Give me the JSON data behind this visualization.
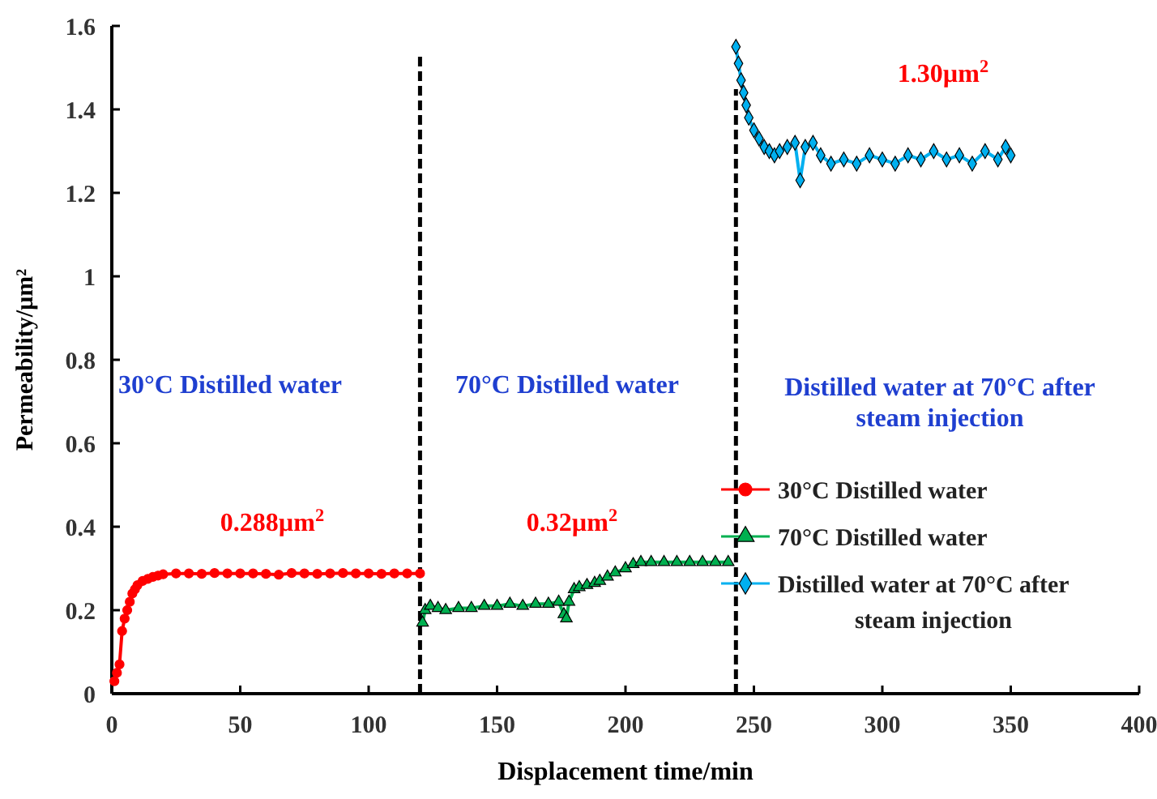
{
  "chart_data": {
    "type": "line",
    "xlabel": "Displacement time/min",
    "ylabel": "Permeability/µm²",
    "xlim": [
      0,
      400
    ],
    "xticks": [
      0,
      50,
      100,
      150,
      200,
      250,
      300,
      350,
      400
    ],
    "ylim": [
      0,
      1.6
    ],
    "yticks": [
      0,
      0.2,
      0.4,
      0.6,
      0.8,
      1,
      1.2,
      1.4,
      1.6
    ],
    "grid": false,
    "legend": "bottom right",
    "line_style": "solid",
    "series": [
      {
        "name": "30°C Distilled water",
        "color": "#ff0000",
        "marker": "circle",
        "x": [
          1,
          2,
          3,
          4,
          5,
          6,
          7,
          8,
          9,
          10,
          12,
          14,
          16,
          18,
          20,
          25,
          30,
          35,
          40,
          45,
          50,
          55,
          60,
          65,
          70,
          75,
          80,
          85,
          90,
          95,
          100,
          105,
          110,
          115,
          120
        ],
        "values": [
          0.03,
          0.05,
          0.07,
          0.15,
          0.18,
          0.2,
          0.22,
          0.24,
          0.25,
          0.26,
          0.27,
          0.275,
          0.28,
          0.283,
          0.286,
          0.288,
          0.288,
          0.287,
          0.289,
          0.288,
          0.288,
          0.288,
          0.287,
          0.285,
          0.289,
          0.288,
          0.287,
          0.288,
          0.289,
          0.288,
          0.288,
          0.287,
          0.288,
          0.288,
          0.288
        ]
      },
      {
        "name": "70°C Distilled water",
        "color": "#00b050",
        "marker": "triangle",
        "x": [
          121,
          122,
          124,
          127,
          130,
          135,
          140,
          145,
          150,
          155,
          160,
          165,
          170,
          174,
          176,
          177,
          178,
          180,
          182,
          185,
          188,
          190,
          193,
          196,
          200,
          203,
          206,
          210,
          215,
          220,
          225,
          230,
          235,
          240
        ],
        "values": [
          0.17,
          0.2,
          0.21,
          0.205,
          0.2,
          0.205,
          0.205,
          0.21,
          0.21,
          0.215,
          0.21,
          0.215,
          0.215,
          0.22,
          0.19,
          0.18,
          0.22,
          0.25,
          0.255,
          0.26,
          0.265,
          0.27,
          0.28,
          0.29,
          0.3,
          0.31,
          0.315,
          0.315,
          0.315,
          0.315,
          0.315,
          0.315,
          0.315,
          0.315
        ]
      },
      {
        "name": "Distilled water at 70°C after steam injection",
        "color": "#00b0f0",
        "marker": "diamond",
        "x": [
          243,
          244,
          245,
          246,
          247,
          248,
          250,
          252,
          254,
          256,
          258,
          260,
          263,
          266,
          268,
          270,
          273,
          276,
          280,
          285,
          290,
          295,
          300,
          305,
          310,
          315,
          320,
          325,
          330,
          335,
          340,
          345,
          348,
          350
        ],
        "values": [
          1.55,
          1.51,
          1.47,
          1.44,
          1.41,
          1.38,
          1.35,
          1.33,
          1.31,
          1.3,
          1.29,
          1.3,
          1.31,
          1.32,
          1.23,
          1.31,
          1.32,
          1.29,
          1.27,
          1.28,
          1.27,
          1.29,
          1.28,
          1.27,
          1.29,
          1.28,
          1.3,
          1.28,
          1.29,
          1.27,
          1.3,
          1.28,
          1.31,
          1.29
        ]
      }
    ],
    "ref_lines": [
      {
        "axis": "x",
        "value": 120,
        "label": null,
        "color": "#000000",
        "line_style": "dashed"
      },
      {
        "axis": "x",
        "value": 243,
        "label": null,
        "color": "#000000",
        "line_style": "dashed"
      }
    ],
    "annotations": [
      "30°C Distilled water",
      "0.288µm$^{2}$",
      "70°C Distilled water",
      "0.32µm$^{2}$",
      "Distilled water at 70°C after\nsteam injection",
      "1.30µm$^{2}$"
    ]
  }
}
